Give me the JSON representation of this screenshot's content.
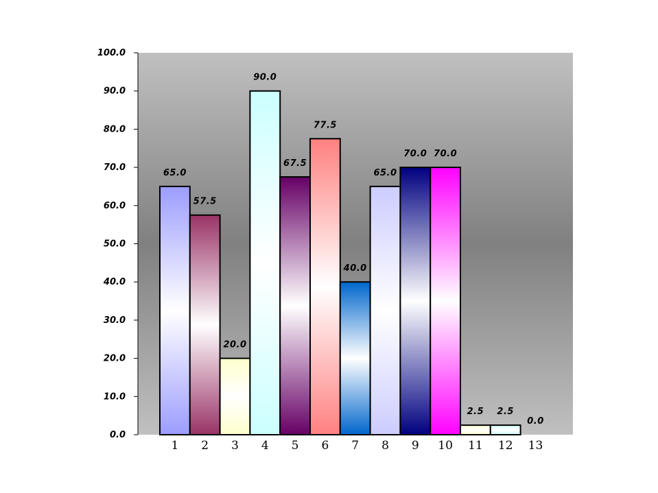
{
  "chart_data": {
    "type": "bar",
    "categories": [
      "1",
      "2",
      "3",
      "4",
      "5",
      "6",
      "7",
      "8",
      "9",
      "10",
      "11",
      "12",
      "13"
    ],
    "values": [
      65.0,
      57.5,
      20.0,
      90.0,
      67.5,
      77.5,
      40.0,
      65.0,
      70.0,
      70.0,
      2.5,
      2.5,
      0.0
    ],
    "data_labels": [
      "65.0",
      "57.5",
      "20.0",
      "90.0",
      "67.5",
      "77.5",
      "40.0",
      "65.0",
      "70.0",
      "70.0",
      "2.5",
      "2.5",
      "0.0"
    ],
    "ylim": [
      0,
      100
    ],
    "yticks": [
      "0.0",
      "10.0",
      "20.0",
      "30.0",
      "40.0",
      "50.0",
      "60.0",
      "70.0",
      "80.0",
      "90.0",
      "100.0"
    ],
    "bar_colors": [
      "#9c9cff",
      "#993366",
      "#ffffcc",
      "#ccffff",
      "#660066",
      "#ff8080",
      "#0066cc",
      "#ccccff",
      "#000080",
      "#ff00ff",
      "#ffffcc",
      "#ccffff",
      "#ccccff"
    ],
    "bar_gradient": "edge-white-center",
    "plot_background": "grey-gradient",
    "grid": false,
    "legend": "none",
    "title": "",
    "xlabel": "",
    "ylabel": ""
  }
}
